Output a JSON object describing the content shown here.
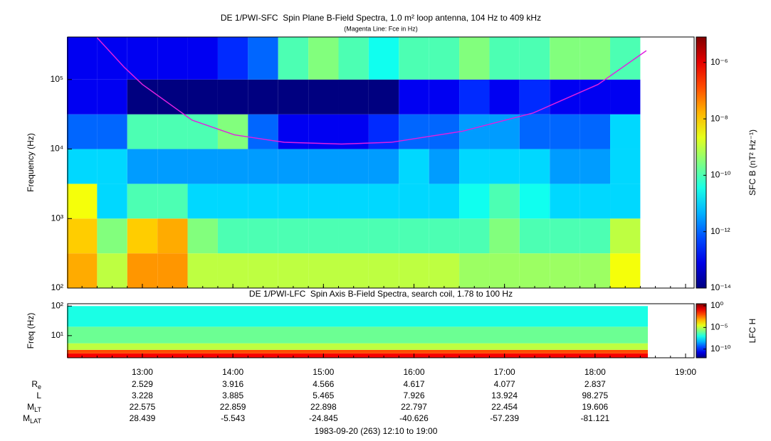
{
  "time_axis": {
    "xlim": [
      "12:10",
      "19:00"
    ],
    "xticks": [
      "13:00",
      "14:00",
      "15:00",
      "16:00",
      "17:00",
      "18:00",
      "19:00"
    ],
    "date_label": "1983-09-20 (263) 12:10 to 19:00"
  },
  "chart_data": [
    {
      "type": "heatmap",
      "title": "DE 1/PWI-SFC  Spin Plane B-Field Spectra, 1.0 m² loop antenna, 104 Hz to 409 kHz",
      "subtitle": "(Magenta Line: Fce in Hz)",
      "ylabel": "Frequency (Hz)",
      "ylim": [
        100,
        409000
      ],
      "log_y": true,
      "yticks": [
        {
          "value": 100,
          "label": "10²"
        },
        {
          "value": 1000,
          "label": "10³"
        },
        {
          "value": 10000,
          "label": "10⁴"
        },
        {
          "value": 100000,
          "label": "10⁵"
        }
      ],
      "t_edges": [
        "12:10",
        "12:30",
        "12:50",
        "13:10",
        "13:30",
        "13:50",
        "14:10",
        "14:30",
        "14:50",
        "15:10",
        "15:30",
        "15:50",
        "16:10",
        "16:30",
        "16:50",
        "17:10",
        "17:30",
        "17:50",
        "18:10",
        "18:30"
      ],
      "f_edges": [
        100,
        316,
        1000,
        3160,
        10000,
        31600,
        100000,
        409000
      ],
      "z": [
        [
          2e-08,
          1e-09,
          3e-08,
          3e-08,
          1e-09,
          1e-09,
          1e-09,
          1e-09,
          1e-09,
          1e-09,
          1e-09,
          1e-09,
          1e-09,
          5e-10,
          5e-10,
          5e-10,
          5e-10,
          5e-10,
          3e-09
        ],
        [
          1e-08,
          3e-10,
          1e-08,
          2e-08,
          3e-10,
          1e-10,
          1e-10,
          1e-10,
          1e-10,
          1e-10,
          1e-10,
          1e-10,
          1e-10,
          1e-10,
          3e-10,
          1e-10,
          1e-10,
          1e-10,
          1e-09
        ],
        [
          3e-09,
          1e-11,
          1e-10,
          1e-10,
          1e-11,
          1e-11,
          1e-11,
          1e-11,
          1e-11,
          1e-11,
          1e-11,
          1e-11,
          1e-11,
          3e-11,
          1e-10,
          3e-11,
          1e-11,
          1e-11,
          1e-11
        ],
        [
          1e-11,
          1e-11,
          3e-12,
          3e-12,
          3e-12,
          3e-12,
          3e-12,
          3e-12,
          3e-12,
          3e-12,
          3e-12,
          1e-11,
          3e-12,
          1e-11,
          1e-11,
          1e-11,
          3e-12,
          3e-12,
          1e-11
        ],
        [
          1e-12,
          1e-12,
          1e-10,
          1e-10,
          1e-10,
          3e-10,
          1e-12,
          1e-13,
          1e-13,
          1e-13,
          3e-13,
          1e-12,
          1e-12,
          3e-12,
          3e-12,
          1e-12,
          1e-12,
          1e-12,
          1e-11
        ],
        [
          1e-13,
          1e-13,
          1e-14,
          1e-14,
          1e-14,
          1e-14,
          1e-14,
          1e-14,
          1e-14,
          1e-14,
          1e-14,
          1e-13,
          1e-13,
          3e-13,
          1e-13,
          3e-13,
          1e-13,
          1e-13,
          1e-13
        ],
        [
          1e-13,
          1e-13,
          1e-13,
          1e-13,
          1e-13,
          3e-13,
          1e-12,
          1e-10,
          3e-10,
          1e-10,
          3e-11,
          1e-10,
          1e-10,
          3e-10,
          1e-10,
          1e-10,
          3e-10,
          3e-10,
          1e-10
        ]
      ],
      "zlim": [
        1e-14,
        8e-06
      ],
      "log_z": true,
      "zticks": [
        {
          "value": 1e-06,
          "label": "10⁻⁶"
        },
        {
          "value": 1e-08,
          "label": "10⁻⁸"
        },
        {
          "value": 1e-10,
          "label": "10⁻¹⁰"
        },
        {
          "value": 1e-12,
          "label": "10⁻¹²"
        },
        {
          "value": 1e-14,
          "label": "10⁻¹⁴"
        }
      ],
      "zlabel": "SFC B (nT² Hz⁻¹)",
      "series": [
        {
          "name": "Fce",
          "color": "#e020e0",
          "x": [
            "12:30",
            "12:48",
            "13:00",
            "13:33",
            "14:01",
            "14:34",
            "15:12",
            "15:45",
            "16:32",
            "17:19",
            "18:02",
            "18:34"
          ],
          "values": [
            400000,
            150000,
            85000,
            26000,
            16000,
            12500,
            11800,
            12500,
            18000,
            33000,
            85000,
            260000
          ]
        }
      ]
    },
    {
      "type": "heatmap",
      "title": "DE 1/PWI-LFC  Spin Axis B-Field Spectra, search coil, 1.78 to 100 Hz",
      "ylabel": "Freq (Hz)",
      "ylim": [
        1.78,
        120
      ],
      "log_y": true,
      "yticks": [
        {
          "value": 10,
          "label": "10¹"
        },
        {
          "value": 100,
          "label": "10²"
        }
      ],
      "t_edges": [
        "12:10",
        "18:35"
      ],
      "f_edges": [
        1.78,
        2.5,
        3.3,
        5.5,
        20,
        100
      ],
      "z": [
        [
          0.1
        ],
        [
          0.01
        ],
        [
          1e-05
        ],
        [
          1e-06
        ],
        [
          1e-07
        ]
      ],
      "zlim": [
        1e-12,
        3
      ],
      "log_z": true,
      "zticks": [
        {
          "value": 1,
          "label": "10⁰"
        },
        {
          "value": 1e-05,
          "label": "10⁻⁵"
        },
        {
          "value": 1e-10,
          "label": "10⁻¹⁰"
        }
      ],
      "zlabel": "LFC H"
    }
  ],
  "ephemeris": {
    "rows": [
      {
        "label": "R",
        "sub": "e",
        "values": [
          2.529,
          3.916,
          4.566,
          4.617,
          4.077,
          2.837
        ]
      },
      {
        "label": "L",
        "values": [
          3.228,
          3.885,
          5.465,
          7.926,
          13.924,
          98.275
        ]
      },
      {
        "label": "M",
        "sub": "LT",
        "values": [
          22.575,
          22.859,
          22.898,
          22.797,
          22.454,
          19.606
        ]
      },
      {
        "label": "M",
        "sub": "LAT",
        "values": [
          28.439,
          -5.543,
          -24.845,
          -40.626,
          -57.239,
          -81.121
        ]
      }
    ]
  }
}
